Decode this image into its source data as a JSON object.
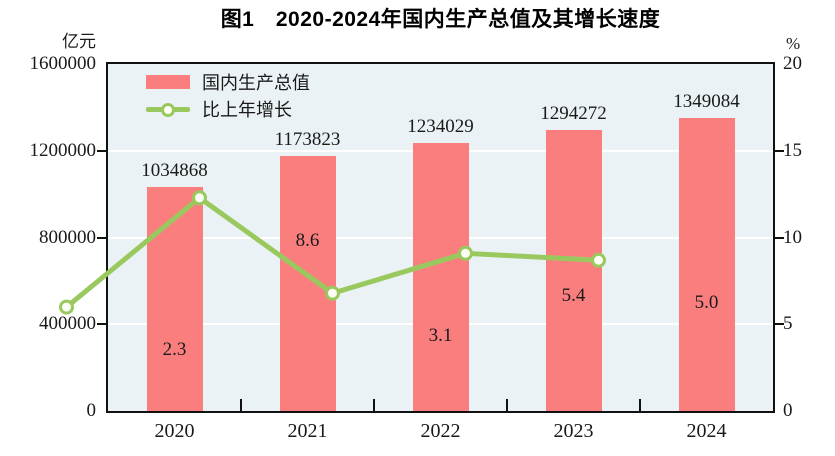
{
  "title": "图1　2020-2024年国内生产总值及其增长速度",
  "left_axis": {
    "unit": "亿元",
    "ticks": [
      "1600000",
      "1200000",
      "800000",
      "400000",
      "0"
    ],
    "max": 1600000
  },
  "right_axis": {
    "unit": "%",
    "ticks": [
      "20",
      "15",
      "10",
      "5",
      "0"
    ],
    "max": 20
  },
  "legend": [
    {
      "label": "国内生产总值",
      "type": "bar"
    },
    {
      "label": "比上年增长",
      "type": "line"
    }
  ],
  "colors": {
    "bar": "#fb7e7e",
    "line": "#99c95e",
    "marker_fill": "#fdfef6",
    "plot_background": "#eaf2f5",
    "gridline": "#ffffff",
    "frame": "#111111",
    "text": "#1a1a1a"
  },
  "chart_data": {
    "type": "bar+line",
    "title": "图1　2020-2024年国内生产总值及其增长速度",
    "categories": [
      "2020",
      "2021",
      "2022",
      "2023",
      "2024"
    ],
    "series": [
      {
        "name": "国内生产总值",
        "type": "bar",
        "axis": "left",
        "unit": "亿元",
        "values": [
          1034868,
          1173823,
          1234029,
          1294272,
          1349084
        ],
        "value_labels": [
          "1034868",
          "1173823",
          "1234029",
          "1294272",
          "1349084"
        ]
      },
      {
        "name": "比上年增长",
        "type": "line",
        "axis": "right",
        "unit": "%",
        "values": [
          2.3,
          8.6,
          3.1,
          5.4,
          5.0
        ],
        "value_labels": [
          "2.3",
          "8.6",
          "3.1",
          "5.4",
          "5.0"
        ]
      }
    ],
    "left_ylim": [
      0,
      1600000
    ],
    "right_ylim": [
      0,
      20
    ],
    "grid": true,
    "gridline_values_left": [
      1200000,
      800000,
      400000
    ],
    "legend_position": "top-left-inside"
  }
}
